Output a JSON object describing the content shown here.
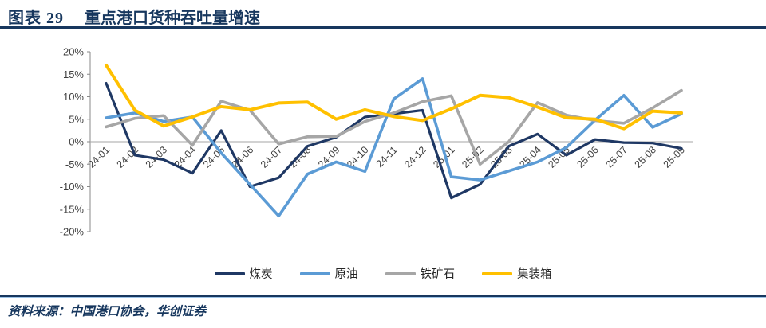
{
  "figure": {
    "label": "图表 29",
    "title": "重点港口货种吞吐量增速",
    "source": "资料来源：中国港口协会，华创证券"
  },
  "colors": {
    "header_navy": "#17375E",
    "rule_light_blue": "#9DC3E6",
    "axis_line": "#898989",
    "zero_line": "#A6A6A6",
    "tick_text": "#404040",
    "series_coal": "#1F3864",
    "series_crude_oil": "#5B9BD5",
    "series_iron_ore": "#A6A6A6",
    "series_container": "#FFC000"
  },
  "chart_data": {
    "type": "line",
    "title": "重点港口货种吞吐量增速",
    "xlabel": "",
    "ylabel": "",
    "ylim": [
      -20,
      20
    ],
    "yticks": [
      20,
      15,
      10,
      5,
      0,
      -5,
      -10,
      -15,
      -20
    ],
    "ytick_suffix": "%",
    "grid": "zero-line-only",
    "legend_position": "bottom",
    "categories": [
      "24-01",
      "24-02",
      "24-03",
      "24-04",
      "24-05",
      "24-06",
      "24-07",
      "24-08",
      "24-09",
      "24-10",
      "24-11",
      "24-12",
      "25-01",
      "25-02",
      "25-03",
      "25-04",
      "25-05",
      "25-06",
      "25-07",
      "25-08",
      "25-09"
    ],
    "series": [
      {
        "name": "煤炭",
        "name_en": "coal",
        "color": "#1F3864",
        "width": 3.2,
        "values": [
          13,
          -3,
          -4,
          -7,
          2.5,
          -10,
          -8,
          -1,
          1,
          5.5,
          6.2,
          7,
          -12.5,
          -9.5,
          -1,
          1.7,
          -3,
          0.5,
          -0.2,
          -0.3,
          -1.5
        ]
      },
      {
        "name": "原油",
        "name_en": "crude-oil",
        "color": "#5B9BD5",
        "width": 3.6,
        "values": [
          5.3,
          6.4,
          4.5,
          5.5,
          -2.5,
          -9.5,
          -16.5,
          -7.2,
          -4.5,
          -6.6,
          9.5,
          14,
          -7.8,
          -8.5,
          -6.5,
          -4.5,
          -1.3,
          4.8,
          10.3,
          3.2,
          6.2
        ]
      },
      {
        "name": "铁矿石",
        "name_en": "iron-ore",
        "color": "#A6A6A6",
        "width": 3.6,
        "values": [
          3.3,
          5.2,
          5.8,
          -0.8,
          9,
          7,
          -0.5,
          1.1,
          1.2,
          4.5,
          6.4,
          8.9,
          10.2,
          -5,
          0,
          8.7,
          5.9,
          4.7,
          4.1,
          7.5,
          11.4
        ]
      },
      {
        "name": "集装箱",
        "name_en": "container",
        "color": "#FFC000",
        "width": 4,
        "values": [
          17,
          7,
          3.5,
          5.5,
          7.8,
          7.1,
          8.6,
          8.8,
          5,
          7.1,
          5.6,
          4.7,
          7.3,
          10.3,
          9.8,
          7.7,
          5.3,
          5,
          2.9,
          6.8,
          6.4
        ]
      }
    ]
  }
}
